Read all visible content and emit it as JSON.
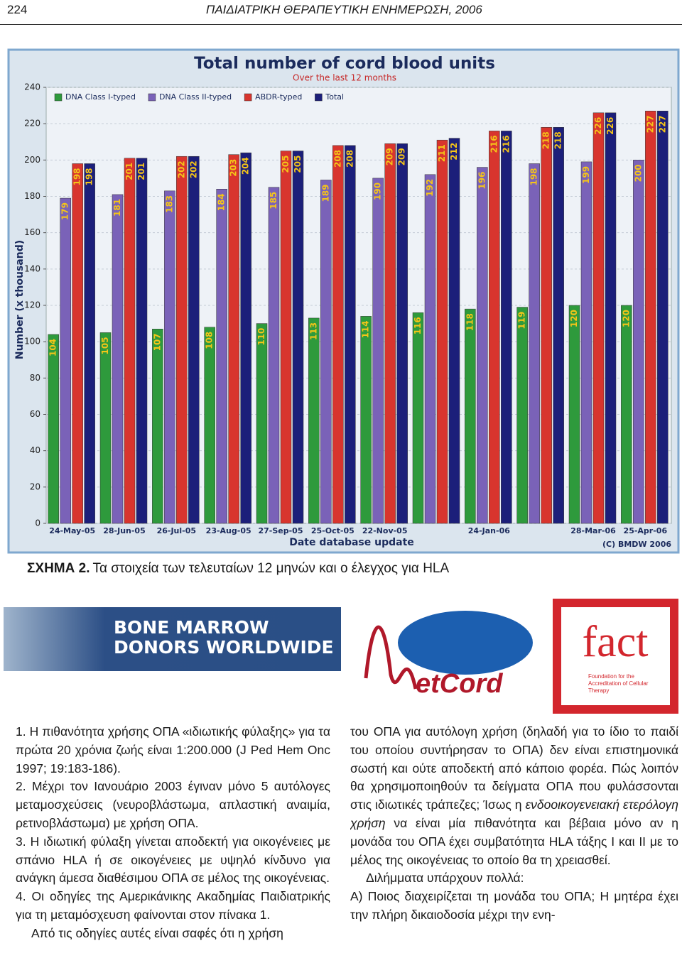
{
  "header": {
    "page": "224",
    "journal": "ΠΑΙΔΙΑΤΡΙΚΗ ΘΕΡΑΠΕΥΤΙΚΗ ΕΝΗΜΕΡΩΣΗ, 2006"
  },
  "chart_data": {
    "type": "bar",
    "title": "Total number of cord blood units",
    "subtitle": "Over the last 12 months",
    "y_label": "Number (x thousand)",
    "x_label": "Date database update",
    "credit": "(C) BMDW 2006",
    "categories": [
      "24-May-05",
      "28-Jun-05",
      "26-Jul-05",
      "23-Aug-05",
      "27-Sep-05",
      "25-Oct-05",
      "22-Nov-05",
      null,
      "24-Jan-06",
      null,
      "28-Mar-06",
      "25-Apr-06"
    ],
    "series": [
      {
        "name": "DNA Class I-typed",
        "color": "#2e9a3c",
        "values": [
          104,
          105,
          107,
          108,
          110,
          113,
          114,
          116,
          118,
          119,
          120,
          120
        ]
      },
      {
        "name": "DNA Class II-typed",
        "color": "#7a62b8",
        "values": [
          179,
          181,
          183,
          184,
          185,
          189,
          190,
          192,
          196,
          198,
          199,
          200
        ]
      },
      {
        "name": "ABDR-typed",
        "color": "#d8352e",
        "values": [
          198,
          201,
          202,
          203,
          205,
          208,
          209,
          211,
          216,
          218,
          226,
          227
        ]
      },
      {
        "name": "Total",
        "color": "#1c1f7a",
        "values": [
          198,
          201,
          202,
          204,
          205,
          208,
          209,
          212,
          216,
          218,
          226,
          227
        ]
      }
    ],
    "ylim": [
      0,
      240
    ],
    "yticks": [
      0,
      20,
      40,
      60,
      80,
      100,
      120,
      140,
      160,
      180,
      200,
      220,
      240
    ],
    "grid": true,
    "legend": "top"
  },
  "caption": {
    "label": "ΣΧΗΜΑ 2.",
    "text": "Τα στοιχεία των τελευταίων 12 μηνών και ο έλεγχος για HLA"
  },
  "logos": {
    "bmdw": [
      "BONE MARROW",
      "DONORS WORLDWIDE"
    ],
    "netcord": "etCord",
    "fact": {
      "name": "fact",
      "tagline": "Foundation for the Accreditation of Cellular Therapy"
    }
  },
  "body": {
    "left": [
      "1. Η πιθανότητα χρήσης ΟΠΑ «ιδιωτικής φύλαξης» για τα πρώτα 20 χρόνια ζωής είναι 1:200.000 (J Ped Hem Onc 1997; 19:183-186).",
      "2. Μέχρι τον Ιανουάριο 2003 έγιναν μόνο 5 αυτόλογες μεταμοσχεύσεις (νευροβλάστωμα, απλαστική αναιμία, ρετινοβλάστωμα) με χρήση ΟΠΑ.",
      "3. Η ιδιωτική φύλαξη γίνεται αποδεκτή για οικογένειες με σπάνιο HLA ή σε οικογένειες με υψηλό κίνδυνο για ανάγκη άμεσα διαθέσιμου ΟΠΑ σε μέλος της οικογένειας.",
      "4. Οι οδηγίες της Αμερικάνικης Ακαδημίας Παιδιατρικής για τη μεταμόσχευση φαίνονται στον πίνακα 1.",
      "Από τις οδηγίες αυτές είναι σαφές ότι η χρήση"
    ],
    "right": [
      {
        "text": "του ΟΠΑ για αυτόλογη χρήση (δηλαδή για το ίδιο το παιδί του οποίου συντήρησαν το ΟΠΑ) δεν είναι επιστημονικά σωστή και ούτε αποδεκτή από κάποιο φορέα. Πώς λοιπόν θα χρησιμοποιηθούν τα δείγματα ΟΠΑ που φυλάσσονται στις ιδιωτικές τράπεζες; Ίσως η",
        "italic": "ενδοοικογενειακή ετερόλογη χρήση",
        "rest": "να είναι μία πιθανότητα και βέβαια μόνο αν η μονάδα του ΟΠΑ έχει συμβατότητα HLA τάξης I και II με το μέλος της οικογένειας το οποίο θα τη χρειασθεί."
      },
      "Διλήμματα υπάρχουν πολλά:",
      "Α) Ποιος διαχειρίζεται τη μονάδα του ΟΠΑ; Η μητέρα έχει την πλήρη δικαιοδοσία μέχρι την ενη-"
    ]
  }
}
